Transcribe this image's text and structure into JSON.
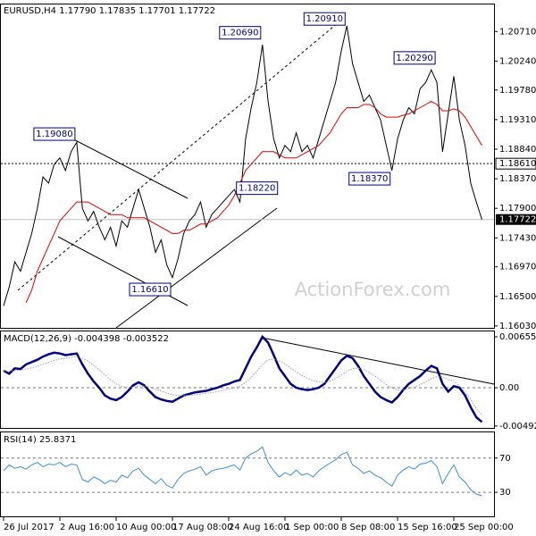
{
  "chart_data": [
    {
      "type": "line",
      "title": "EURUSD,H4 1.17790 1.17835 1.17701 1.17722",
      "watermark": "ActionForex.com",
      "ylim": [
        1.16,
        1.2114
      ],
      "yticks": [
        {
          "value": 1.2071,
          "label": "1.20710"
        },
        {
          "value": 1.2024,
          "label": "1.20240"
        },
        {
          "value": 1.1978,
          "label": "1.19780"
        },
        {
          "value": 1.1931,
          "label": "1.19310"
        },
        {
          "value": 1.1884,
          "label": "1.18840"
        },
        {
          "value": 1.1837,
          "label": "1.18370"
        },
        {
          "value": 1.179,
          "label": "1.17900"
        },
        {
          "value": 1.1743,
          "label": "1.17430"
        },
        {
          "value": 1.1697,
          "label": "1.16970"
        },
        {
          "value": 1.165,
          "label": "1.16500"
        },
        {
          "value": 1.1603,
          "label": "1.16030"
        }
      ],
      "hline": {
        "value": 1.1861,
        "label": "1.18610"
      },
      "last": {
        "value": 1.17722,
        "label": "1.17722"
      },
      "annotations": [
        {
          "label": "1.19080",
          "value": 1.1908,
          "x": 13
        },
        {
          "label": "1.20690",
          "value": 1.2069,
          "x": 46
        },
        {
          "label": "1.20910",
          "value": 1.2091,
          "x": 61
        },
        {
          "label": "1.20290",
          "value": 1.2029,
          "x": 77
        },
        {
          "label": "1.18370",
          "value": 1.1837,
          "x": 69
        },
        {
          "label": "1.18220",
          "value": 1.1822,
          "x": 49
        },
        {
          "label": "1.16610",
          "value": 1.1661,
          "x": 30
        }
      ],
      "series": [
        {
          "color": "#000000",
          "style": "solid",
          "values": [
            1.1635,
            1.1665,
            1.1705,
            1.169,
            1.172,
            1.175,
            1.179,
            1.184,
            1.183,
            1.186,
            1.187,
            1.185,
            1.188,
            1.1895,
            1.179,
            1.177,
            1.1785,
            1.176,
            1.174,
            1.176,
            1.173,
            1.177,
            1.176,
            1.179,
            1.182,
            1.179,
            1.176,
            1.172,
            1.174,
            1.17,
            1.168,
            1.171,
            1.175,
            1.177,
            1.178,
            1.18,
            1.176,
            1.178,
            1.179,
            1.18,
            1.181,
            1.182,
            1.18,
            1.19,
            1.195,
            1.199,
            1.205,
            1.196,
            1.19,
            1.187,
            1.189,
            1.188,
            1.191,
            1.188,
            1.189,
            1.187,
            1.19,
            1.193,
            1.196,
            1.199,
            1.204,
            1.208,
            1.202,
            1.199,
            1.196,
            1.197,
            1.195,
            1.193,
            1.189,
            1.185,
            1.19,
            1.193,
            1.195,
            1.194,
            1.198,
            1.199,
            1.201,
            1.199,
            1.188,
            1.194,
            1.2,
            1.193,
            1.189,
            1.183,
            1.18,
            1.1772
          ]
        },
        {
          "color": "#e00000",
          "style": "solid",
          "values": [
            null,
            null,
            null,
            null,
            1.164,
            1.166,
            1.169,
            1.171,
            1.173,
            1.175,
            1.177,
            1.178,
            1.179,
            1.18,
            1.18,
            1.18,
            1.1795,
            1.179,
            1.1785,
            1.178,
            1.178,
            1.178,
            1.1775,
            1.1775,
            1.1775,
            1.1775,
            1.177,
            1.1765,
            1.176,
            1.1755,
            1.175,
            1.175,
            1.1755,
            1.1755,
            1.176,
            1.1765,
            1.1765,
            1.177,
            1.1775,
            1.1785,
            1.1795,
            1.181,
            1.183,
            1.185,
            1.186,
            1.187,
            1.188,
            1.188,
            1.188,
            1.1875,
            1.187,
            1.187,
            1.187,
            1.1875,
            1.188,
            1.1885,
            1.189,
            1.19,
            1.191,
            1.1925,
            1.194,
            1.195,
            1.195,
            1.195,
            1.1955,
            1.1955,
            1.195,
            1.194,
            1.1935,
            1.1935,
            1.1935,
            1.1938,
            1.194,
            1.1945,
            1.195,
            1.1955,
            1.196,
            1.1955,
            1.1945,
            1.1945,
            1.1948,
            1.1945,
            1.1935,
            1.192,
            1.1905,
            1.189
          ]
        }
      ]
    },
    {
      "type": "line",
      "title": "MACD(12,26,9) -0.004398 -0.003522",
      "ylim": [
        -0.00517,
        0.00724
      ],
      "zero_line": true,
      "yticks": [
        0.006552,
        {
          "value": 0,
          "label": "0.00"
        },
        -0.00492
      ],
      "series": [
        {
          "color": "#000080",
          "style": "bold",
          "values": [
            0.0022,
            0.0018,
            0.0025,
            0.0024,
            0.003,
            0.0033,
            0.0036,
            0.004,
            0.0043,
            0.0045,
            0.0044,
            0.0042,
            0.0043,
            0.0044,
            0.003,
            0.0018,
            0.0008,
            0,
            -0.001,
            -0.0014,
            -0.0016,
            -0.0012,
            -0.0005,
            0.0003,
            0.0007,
            0.0003,
            -0.0005,
            -0.0012,
            -0.0015,
            -0.0017,
            -0.0018,
            -0.0014,
            -0.001,
            -0.0008,
            -0.0006,
            -0.0005,
            -0.0004,
            -0.0002,
            0,
            0.0003,
            0.0005,
            0.0008,
            0.001,
            0.0025,
            0.004,
            0.0052,
            0.006552,
            0.0058,
            0.0042,
            0.0025,
            0.0015,
            0.0005,
            0,
            -0.0002,
            -0.0003,
            -0.0002,
            0,
            0.0005,
            0.0015,
            0.0025,
            0.0035,
            0.0041,
            0.0038,
            0.0028,
            0.0015,
            0.0005,
            -0.0005,
            -0.0012,
            -0.0016,
            -0.0019,
            -0.0012,
            -0.0003,
            0.0005,
            0.001,
            0.0015,
            0.0022,
            0.0028,
            0.0025,
            0.0005,
            -0.0005,
            0.0002,
            0,
            -0.001,
            -0.0025,
            -0.0038,
            -0.004398
          ]
        },
        {
          "color": "#a0a0a0",
          "style": "dotted",
          "values": [
            0.0022,
            0.00212,
            0.0022,
            0.00224,
            0.00239,
            0.00257,
            0.00278,
            0.00302,
            0.00328,
            0.00352,
            0.0037,
            0.0038,
            0.0039,
            0.004,
            0.0038,
            0.0034,
            0.0029,
            0.0023,
            0.00165,
            0.00104,
            0.00051,
            0.00017,
            4e-05,
            9e-05,
            0.00021,
            0.00023,
            8e-05,
            -0.00018,
            -0.00044,
            -0.00069,
            -0.00091,
            -0.00101,
            -0.00101,
            -0.00097,
            -0.0009,
            -0.00082,
            -0.00074,
            -0.00063,
            -0.0005,
            -0.00034,
            -0.00017,
            2e-05,
            0.00022,
            0.00067,
            0.00134,
            0.00211,
            0.003,
            0.00356,
            0.00369,
            0.00345,
            0.00306,
            0.00255,
            0.00204,
            0.00159,
            0.00121,
            0.00093,
            0.00074,
            0.00069,
            0.00085,
            0.00118,
            0.00164,
            0.00213,
            0.00246,
            0.00253,
            0.00232,
            0.00196,
            0.00147,
            0.00094,
            0.00043,
            -4e-05,
            -0.00027,
            -0.00028,
            -0.00012,
            0.0001,
            0.00038,
            0.00074,
            0.00115,
            0.00142,
            0.00144,
            0.00105,
            0.00088,
            0.0002,
            -0.0005,
            -0.0015,
            -0.0027,
            -0.003522
          ]
        }
      ]
    },
    {
      "type": "line",
      "title": "RSI(14) 25.8371",
      "ylim": [
        3,
        100
      ],
      "grid": "dashed",
      "yticks": [
        70,
        30
      ],
      "categories": [
        "26 Jul 2017",
        null,
        null,
        null,
        null,
        null,
        null,
        null,
        null,
        null,
        "2 Aug 16:00",
        null,
        null,
        null,
        null,
        null,
        null,
        null,
        null,
        null,
        "10 Aug 00:00",
        null,
        null,
        null,
        null,
        null,
        null,
        null,
        null,
        null,
        "17 Aug 08:00",
        null,
        null,
        null,
        null,
        null,
        null,
        null,
        null,
        null,
        "24 Aug 16:00",
        null,
        null,
        null,
        null,
        null,
        null,
        null,
        null,
        null,
        "1 Sep 00:00",
        null,
        null,
        null,
        null,
        null,
        null,
        null,
        null,
        null,
        "8 Sep 08:00",
        null,
        null,
        null,
        null,
        null,
        null,
        null,
        null,
        null,
        "15 Sep 16:00",
        null,
        null,
        null,
        null,
        null,
        null,
        null,
        null,
        null,
        "25 Sep 00:00",
        null,
        null,
        null,
        null,
        null
      ],
      "series": [
        {
          "color": "#3a8fd6",
          "style": "solid",
          "values": [
            55,
            62,
            58,
            60,
            57,
            62,
            65,
            60,
            63,
            62,
            65,
            60,
            63,
            62,
            45,
            42,
            48,
            45,
            40,
            44,
            42,
            50,
            47,
            55,
            58,
            50,
            45,
            40,
            46,
            38,
            35,
            45,
            52,
            55,
            57,
            60,
            50,
            55,
            57,
            58,
            60,
            62,
            56,
            70,
            75,
            78,
            83,
            65,
            55,
            48,
            53,
            50,
            56,
            50,
            52,
            48,
            55,
            60,
            64,
            68,
            74,
            77,
            62,
            58,
            52,
            55,
            50,
            47,
            42,
            37,
            50,
            56,
            60,
            57,
            63,
            64,
            67,
            60,
            40,
            52,
            62,
            48,
            42,
            33,
            28,
            25.8371
          ]
        }
      ]
    }
  ]
}
